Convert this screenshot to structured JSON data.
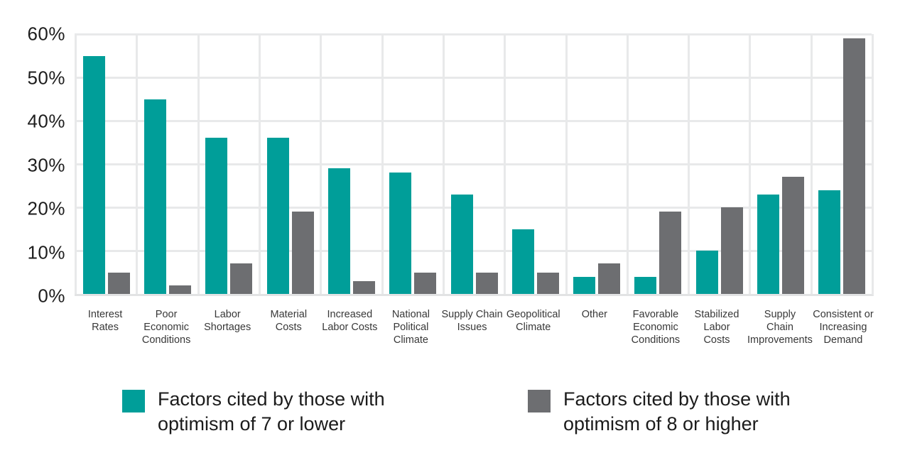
{
  "chart_data": {
    "type": "bar",
    "title": "",
    "xlabel": "",
    "ylabel": "",
    "ylim": [
      0,
      60
    ],
    "y_ticks": [
      "60%",
      "50%",
      "40%",
      "30%",
      "20%",
      "10%",
      "0%"
    ],
    "grid": "both",
    "legend_position": "bottom",
    "categories": [
      "Interest\nRates",
      "Poor\nEconomic\nConditions",
      "Labor\nShortages",
      "Material\nCosts",
      "Increased\nLabor Costs",
      "National\nPolitical\nClimate",
      "Supply Chain\nIssues",
      "Geopolitical\nClimate",
      "Other",
      "Favorable\nEconomic\nConditions",
      "Stabilized\nLabor\nCosts",
      "Supply\nChain\nImprovements",
      "Consistent or\nIncreasing\nDemand"
    ],
    "series": [
      {
        "name": "Factors cited by those with optimism of 7 or lower",
        "color": "#009E99",
        "values": [
          55,
          45,
          36,
          36,
          29,
          28,
          23,
          15,
          4,
          4,
          10,
          23,
          24
        ]
      },
      {
        "name": "Factors cited by those with optimism of 8 or higher",
        "color": "#6D6E71",
        "values": [
          5,
          2,
          7,
          19,
          3,
          5,
          5,
          5,
          7,
          19,
          20,
          27,
          59
        ]
      }
    ]
  },
  "legend": {
    "items": [
      {
        "label_line1": "Factors cited by those with",
        "label_line2": "optimism of 7 or lower",
        "color": "#009E99"
      },
      {
        "label_line1": "Factors cited by those with",
        "label_line2": "optimism of 8 or higher",
        "color": "#6D6E71"
      }
    ]
  }
}
